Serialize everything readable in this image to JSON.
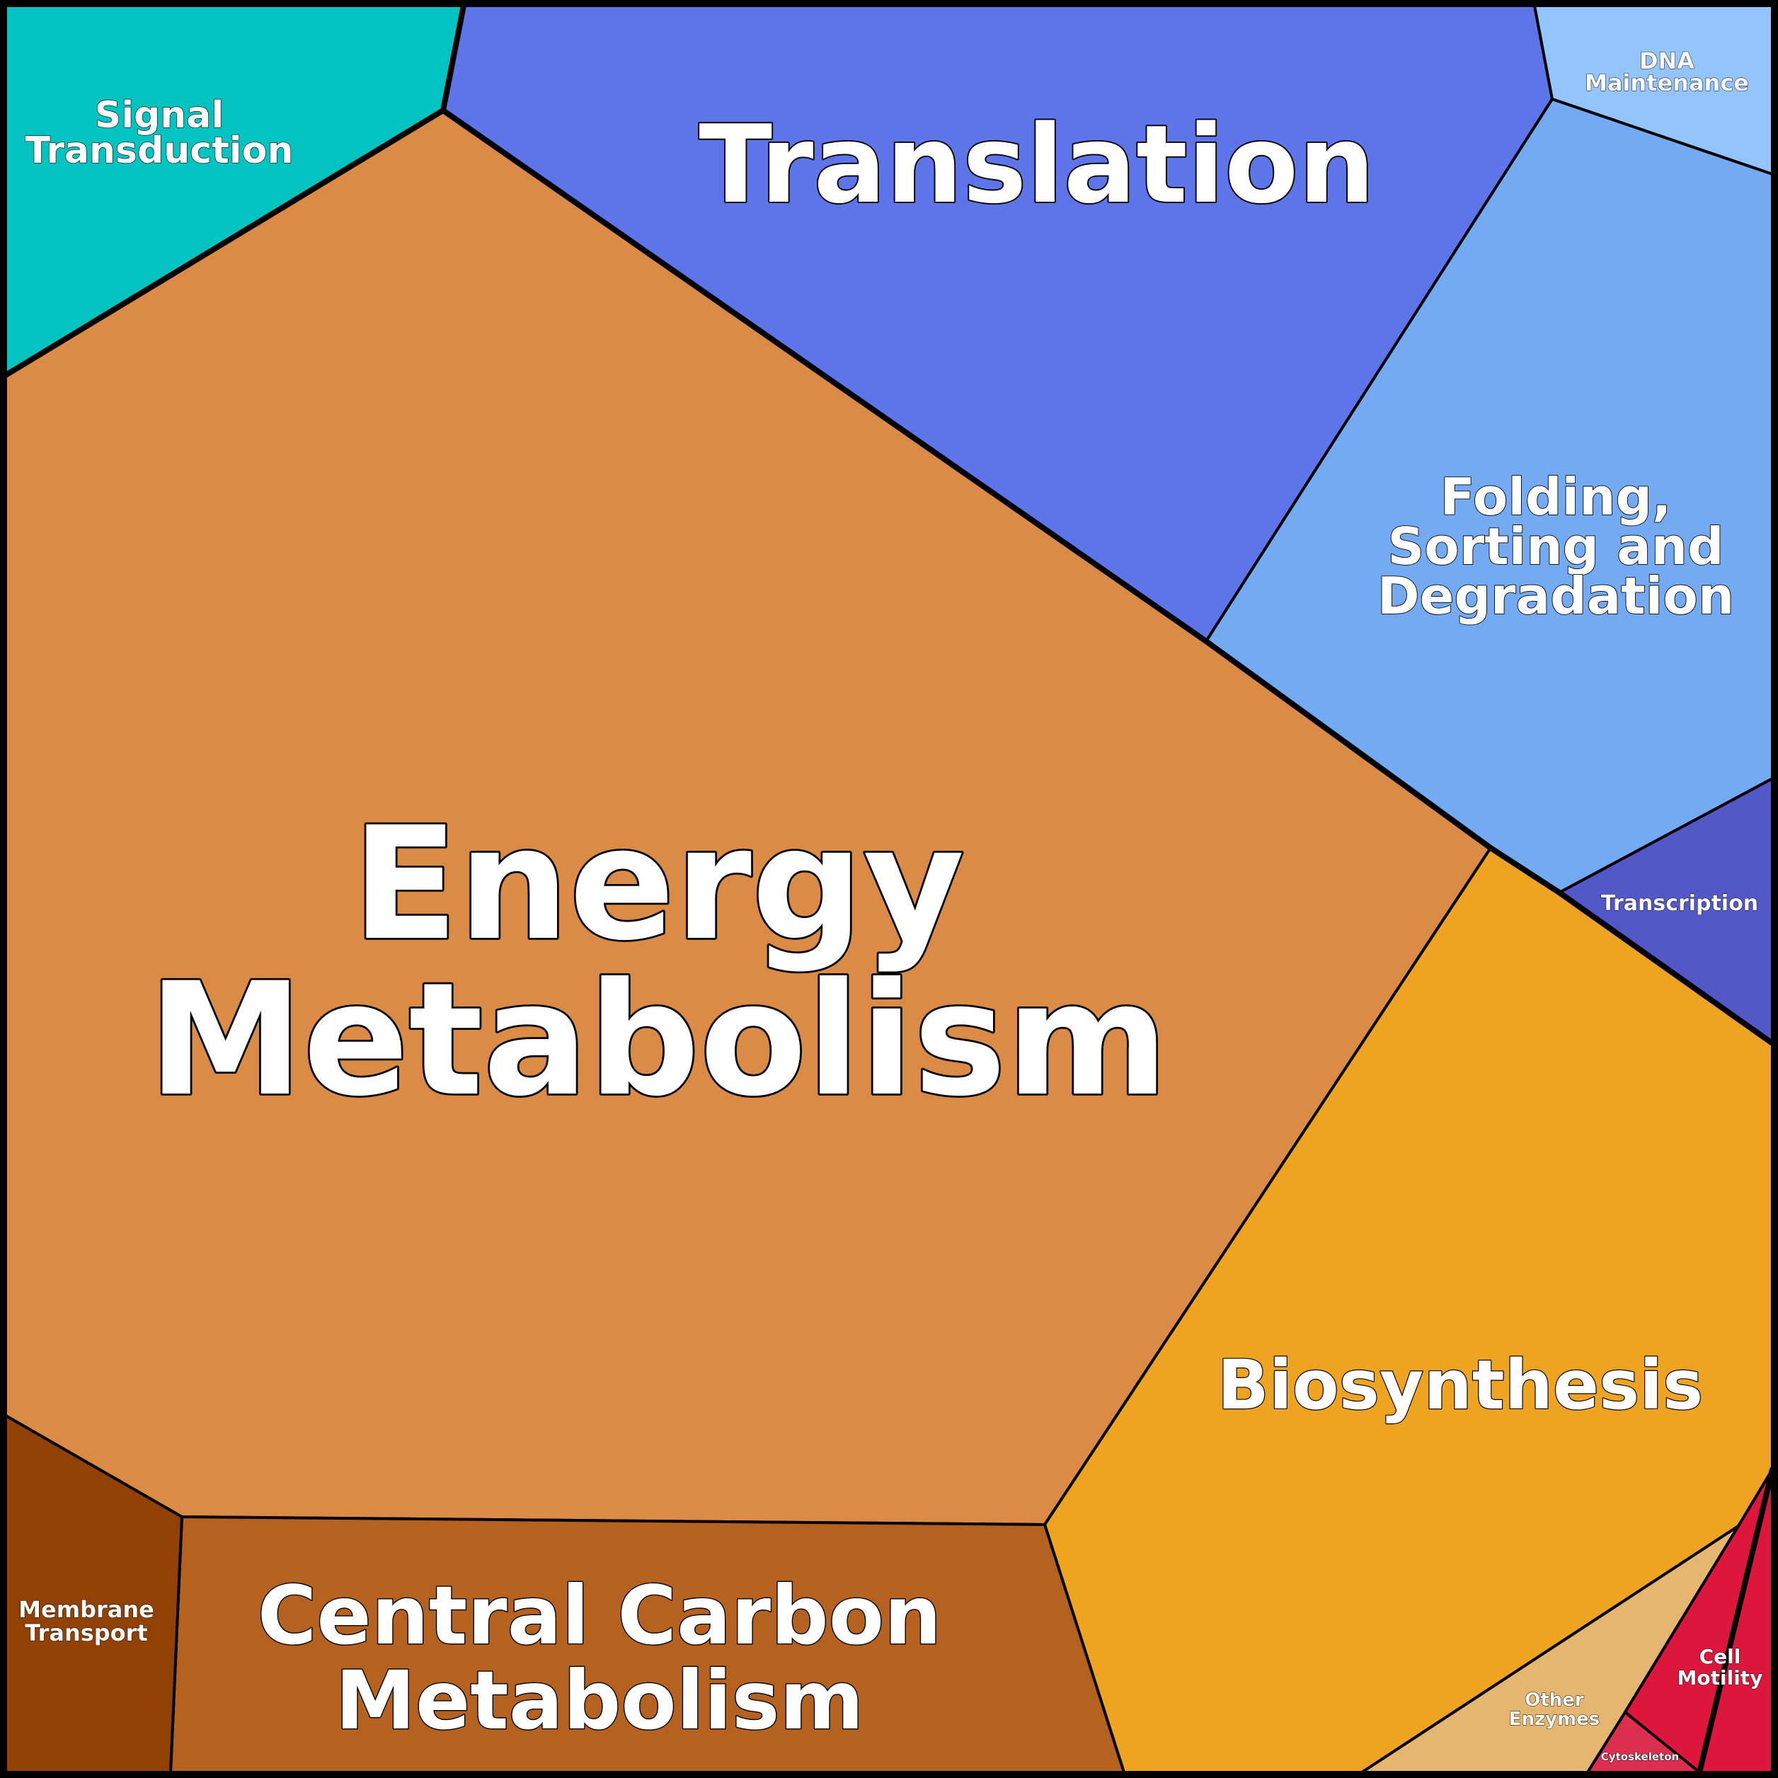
{
  "chart_data": {
    "type": "voronoi-treemap",
    "cells": [
      {
        "id": "energy-metabolism",
        "lines": [
          "Energy",
          "Metabolism"
        ],
        "color": "#DB8B45"
      },
      {
        "id": "translation",
        "lines": [
          "Translation"
        ],
        "color": "#5E75E9"
      },
      {
        "id": "signal-transduction",
        "lines": [
          "Signal",
          "Transduction"
        ],
        "color": "#03C3C1"
      },
      {
        "id": "dna-maintenance",
        "lines": [
          "DNA",
          "Maintenance"
        ],
        "color": "#93C4FB"
      },
      {
        "id": "folding-sorting-degradation",
        "lines": [
          "Folding,",
          "Sorting and",
          "Degradation"
        ],
        "color": "#73AAF2"
      },
      {
        "id": "transcription",
        "lines": [
          "Transcription"
        ],
        "color": "#5358C9"
      },
      {
        "id": "biosynthesis",
        "lines": [
          "Biosynthesis"
        ],
        "color": "#EEA420"
      },
      {
        "id": "central-carbon-metabolism",
        "lines": [
          "Central Carbon",
          "Metabolism"
        ],
        "color": "#B56221"
      },
      {
        "id": "membrane-transport",
        "lines": [
          "Membrane",
          "Transport"
        ],
        "color": "#924104"
      },
      {
        "id": "other-enzymes",
        "lines": [
          "Other",
          "Enzymes"
        ],
        "color": "#E5B66F"
      },
      {
        "id": "cell-motility",
        "lines": [
          "Cell",
          "Motility"
        ],
        "color": "#DE163D"
      },
      {
        "id": "cytoskeleton",
        "lines": [
          "Cytoskeleton"
        ],
        "color": "#DC2F50"
      }
    ]
  }
}
